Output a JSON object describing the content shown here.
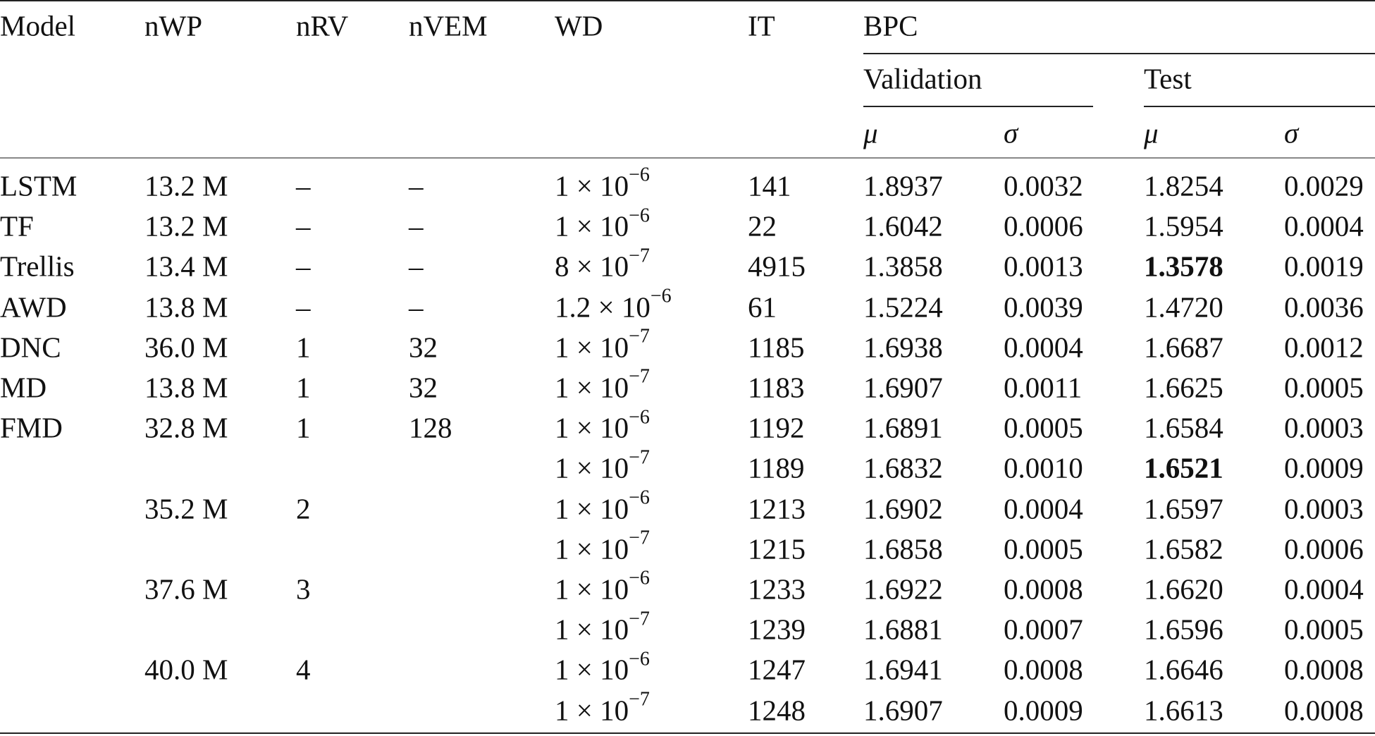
{
  "headers": {
    "model": "Model",
    "nwp": "nWP",
    "nrv": "nRV",
    "nvem": "nVEM",
    "wd": "WD",
    "it": "IT",
    "bpc": "BPC",
    "validation": "Validation",
    "test": "Test",
    "mu": "μ",
    "sigma": "σ"
  },
  "rows": [
    {
      "model": "LSTM",
      "nwp": "13.2  M",
      "nrv": "–",
      "nvem": "–",
      "wd_m": "1 × 10",
      "wd_e": "−6",
      "it": "141",
      "val_mu": "1.8937",
      "val_sigma": "0.0032",
      "test_mu": "1.8254",
      "test_sigma": "0.0029",
      "bold": false
    },
    {
      "model": "TF",
      "nwp": "13.2  M",
      "nrv": "–",
      "nvem": "–",
      "wd_m": "1 × 10",
      "wd_e": "−6",
      "it": "22",
      "val_mu": "1.6042",
      "val_sigma": "0.0006",
      "test_mu": "1.5954",
      "test_sigma": "0.0004",
      "bold": false
    },
    {
      "model": "Trellis",
      "nwp": "13.4  M",
      "nrv": "–",
      "nvem": "–",
      "wd_m": "8 × 10",
      "wd_e": "−7",
      "it": "4915",
      "val_mu": "1.3858",
      "val_sigma": "0.0013",
      "test_mu": "1.3578",
      "test_sigma": "0.0019",
      "bold": true
    },
    {
      "model": "AWD",
      "nwp": "13.8  M",
      "nrv": "–",
      "nvem": "–",
      "wd_m": "1.2 × 10",
      "wd_e": "−6",
      "it": "61",
      "val_mu": "1.5224",
      "val_sigma": "0.0039",
      "test_mu": "1.4720",
      "test_sigma": "0.0036",
      "bold": false
    },
    {
      "model": "DNC",
      "nwp": "36.0  M",
      "nrv": "1",
      "nvem": "32",
      "wd_m": "1 × 10",
      "wd_e": "−7",
      "it": "1185",
      "val_mu": "1.6938",
      "val_sigma": "0.0004",
      "test_mu": "1.6687",
      "test_sigma": "0.0012",
      "bold": false
    },
    {
      "model": "MD",
      "nwp": "13.8  M",
      "nrv": "1",
      "nvem": "32",
      "wd_m": "1 × 10",
      "wd_e": "−7",
      "it": "1183",
      "val_mu": "1.6907",
      "val_sigma": "0.0011",
      "test_mu": "1.6625",
      "test_sigma": "0.0005",
      "bold": false
    },
    {
      "model": "FMD",
      "nwp": "32.8  M",
      "nrv": "1",
      "nvem": "128",
      "wd_m": "1 × 10",
      "wd_e": "−6",
      "it": "1192",
      "val_mu": "1.6891",
      "val_sigma": "0.0005",
      "test_mu": "1.6584",
      "test_sigma": "0.0003",
      "bold": false
    },
    {
      "model": "",
      "nwp": "",
      "nrv": "",
      "nvem": "",
      "wd_m": "1 × 10",
      "wd_e": "−7",
      "it": "1189",
      "val_mu": "1.6832",
      "val_sigma": "0.0010",
      "test_mu": "1.6521",
      "test_sigma": "0.0009",
      "bold": true
    },
    {
      "model": "",
      "nwp": "35.2  M",
      "nrv": "2",
      "nvem": "",
      "wd_m": "1 × 10",
      "wd_e": "−6",
      "it": "1213",
      "val_mu": "1.6902",
      "val_sigma": "0.0004",
      "test_mu": "1.6597",
      "test_sigma": "0.0003",
      "bold": false
    },
    {
      "model": "",
      "nwp": "",
      "nrv": "",
      "nvem": "",
      "wd_m": "1 × 10",
      "wd_e": "−7",
      "it": "1215",
      "val_mu": "1.6858",
      "val_sigma": "0.0005",
      "test_mu": "1.6582",
      "test_sigma": "0.0006",
      "bold": false
    },
    {
      "model": "",
      "nwp": "37.6  M",
      "nrv": "3",
      "nvem": "",
      "wd_m": "1 × 10",
      "wd_e": "−6",
      "it": "1233",
      "val_mu": "1.6922",
      "val_sigma": "0.0008",
      "test_mu": "1.6620",
      "test_sigma": "0.0004",
      "bold": false
    },
    {
      "model": "",
      "nwp": "",
      "nrv": "",
      "nvem": "",
      "wd_m": "1 × 10",
      "wd_e": "−7",
      "it": "1239",
      "val_mu": "1.6881",
      "val_sigma": "0.0007",
      "test_mu": "1.6596",
      "test_sigma": "0.0005",
      "bold": false
    },
    {
      "model": "",
      "nwp": "40.0  M",
      "nrv": "4",
      "nvem": "",
      "wd_m": "1 × 10",
      "wd_e": "−6",
      "it": "1247",
      "val_mu": "1.6941",
      "val_sigma": "0.0008",
      "test_mu": "1.6646",
      "test_sigma": "0.0008",
      "bold": false
    },
    {
      "model": "",
      "nwp": "",
      "nrv": "",
      "nvem": "",
      "wd_m": "1 × 10",
      "wd_e": "−7",
      "it": "1248",
      "val_mu": "1.6907",
      "val_sigma": "0.0009",
      "test_mu": "1.6613",
      "test_sigma": "0.0008",
      "bold": false
    }
  ]
}
